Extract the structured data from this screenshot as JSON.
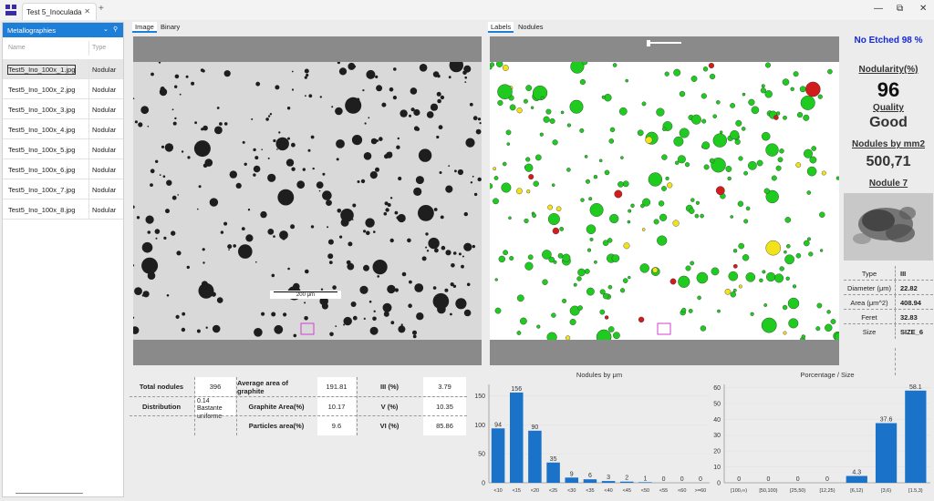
{
  "window": {
    "tab_title": "Test 5_Inoculada",
    "tab_close": "✕",
    "add_tab": "+",
    "minimize": "—",
    "maximize": "⧉",
    "close": "✕"
  },
  "sidebar": {
    "title": "Metallographies",
    "col_name": "Name",
    "col_type": "Type",
    "files": [
      {
        "name": "Test5_Ino_100x_1.jpg",
        "type": "Nodular"
      },
      {
        "name": "Test5_Ino_100x_2.jpg",
        "type": "Nodular"
      },
      {
        "name": "Test5_Ino_100x_3.jpg",
        "type": "Nodular"
      },
      {
        "name": "Test5_Ino_100x_4.jpg",
        "type": "Nodular"
      },
      {
        "name": "Test5_Ino_100x_5.jpg",
        "type": "Nodular"
      },
      {
        "name": "Test5_Ino_100x_6.jpg",
        "type": "Nodular"
      },
      {
        "name": "Test5_Ino_100x_7.jpg",
        "type": "Nodular"
      },
      {
        "name": "Test5_Ino_100x_8.jpg",
        "type": "Nodular"
      }
    ]
  },
  "view_tabs": {
    "image": "Image",
    "binary": "Binary",
    "labels": "Labels",
    "nodules": "Nodules"
  },
  "image": {
    "scale_label": "200 μm"
  },
  "results": {
    "etch": "No Etched 98 %",
    "nodularity_label": "Nodularity(%)",
    "nodularity_value": "96",
    "quality_label": "Quality",
    "quality_value": "Good",
    "nodules_label": "Nodules by mm2",
    "nodules_value": "500,71",
    "nodule_title": "Nodule 7",
    "props": [
      {
        "label": "Type",
        "value": "III"
      },
      {
        "label": "Diameter (μm)",
        "value": "22.82"
      },
      {
        "label": "Area (μm^2)",
        "value": "408.94"
      },
      {
        "label": "Feret",
        "value": "32.83"
      },
      {
        "label": "Size",
        "value": "SIZE_6"
      }
    ]
  },
  "stats": {
    "total_nodules_label": "Total nodules",
    "total_nodules": "396",
    "avg_area_label": "Average area of graphite",
    "avg_area": "191.81",
    "iii_label": "III (%)",
    "iii": "3.79",
    "distribution_label": "Distribution",
    "distribution": "0.14 Bastante uniforme",
    "graphite_area_label": "Graphite Area(%)",
    "graphite_area": "10.17",
    "v_label": "V (%)",
    "v": "10.35",
    "particles_area_label": "Particles area(%)",
    "particles_area": "9.6",
    "vi_label": "VI (%)",
    "vi": "85.86"
  },
  "chart_data": [
    {
      "type": "bar",
      "title": "Nodules by μm",
      "categories": [
        "<10",
        "<15",
        "<20",
        "<25",
        "<30",
        "<35",
        "<40",
        "<45",
        "<50",
        "<55",
        "<60",
        ">=60"
      ],
      "values": [
        94,
        156,
        90,
        35,
        9,
        6,
        3,
        2,
        1,
        0,
        0,
        0
      ],
      "ylim": [
        0,
        170
      ],
      "yticks": [
        0,
        50,
        100,
        150
      ],
      "color": "#1a72c9",
      "grid": true
    },
    {
      "type": "bar",
      "title": "Porcentage  /  Size",
      "categories": [
        "[100,∞)",
        "[50,100)",
        "[25,50)",
        "[12,25)",
        "[6,12)",
        "[3,6)",
        "[1.5,3)"
      ],
      "values": [
        0,
        0,
        0,
        0,
        4.3,
        37.6,
        58.1
      ],
      "labels": [
        "0",
        "0",
        "0",
        "0",
        "4.3",
        "37.6",
        "58.1"
      ],
      "ylim": [
        0,
        62
      ],
      "yticks": [
        0,
        10,
        20,
        30,
        40,
        50,
        60
      ],
      "color": "#1a72c9",
      "grid": true
    }
  ]
}
